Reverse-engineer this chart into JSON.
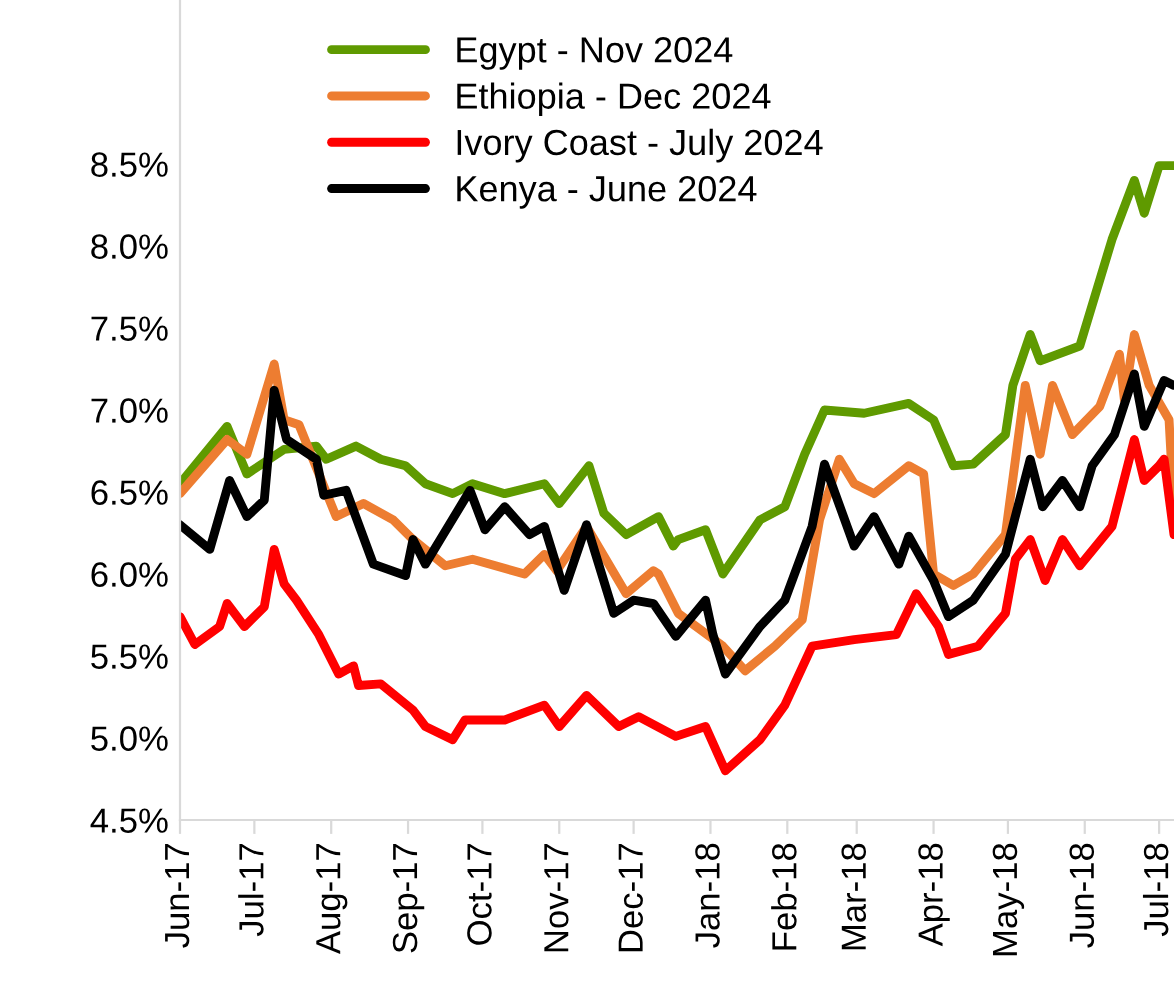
{
  "chart_data": {
    "type": "line",
    "legend": "top",
    "grid": false,
    "line_style": "solid",
    "marker": "none",
    "xlim": [
      "2017-06-01",
      "2018-07-07"
    ],
    "xticks": [
      {
        "value": "2017-06-01",
        "label": "Jun-17"
      },
      {
        "value": "2017-07-01",
        "label": "Jul-17"
      },
      {
        "value": "2017-08-01",
        "label": "Aug-17"
      },
      {
        "value": "2017-09-01",
        "label": "Sep-17"
      },
      {
        "value": "2017-10-01",
        "label": "Oct-17"
      },
      {
        "value": "2017-11-01",
        "label": "Nov-17"
      },
      {
        "value": "2017-12-01",
        "label": "Dec-17"
      },
      {
        "value": "2018-01-01",
        "label": "Jan-18"
      },
      {
        "value": "2018-02-01",
        "label": "Feb-18"
      },
      {
        "value": "2018-03-01",
        "label": "Mar-18"
      },
      {
        "value": "2018-04-01",
        "label": "Apr-18"
      },
      {
        "value": "2018-05-01",
        "label": "May-18"
      },
      {
        "value": "2018-06-01",
        "label": "Jun-18"
      },
      {
        "value": "2018-07-01",
        "label": "Jul-18"
      }
    ],
    "ylim": [
      4.5,
      9.5
    ],
    "yticks": [
      {
        "value": 4.5,
        "label": "4.5%"
      },
      {
        "value": 5.0,
        "label": "5.0%"
      },
      {
        "value": 5.5,
        "label": "5.5%"
      },
      {
        "value": 6.0,
        "label": "6.0%"
      },
      {
        "value": 6.5,
        "label": "6.5%"
      },
      {
        "value": 7.0,
        "label": "7.0%"
      },
      {
        "value": 7.5,
        "label": "7.5%"
      },
      {
        "value": 8.0,
        "label": "8.0%"
      },
      {
        "value": 8.5,
        "label": "8.5%"
      }
    ],
    "series": [
      {
        "name": "Egypt - Nov 2024",
        "color": "#5f9a00",
        "x": [
          "2017-06-01",
          "2017-06-20",
          "2017-06-28",
          "2017-07-13",
          "2017-07-26",
          "2017-07-30",
          "2017-08-11",
          "2017-08-21",
          "2017-08-31",
          "2017-09-08",
          "2017-09-19",
          "2017-09-27",
          "2017-10-10",
          "2017-10-26",
          "2017-11-01",
          "2017-11-13",
          "2017-11-19",
          "2017-11-28",
          "2017-12-11",
          "2017-12-17",
          "2017-12-19",
          "2017-12-30",
          "2018-01-06",
          "2018-01-21",
          "2018-01-31",
          "2018-02-08",
          "2018-02-16",
          "2018-03-04",
          "2018-03-22",
          "2018-04-01",
          "2018-04-09",
          "2018-04-17",
          "2018-04-30",
          "2018-05-03",
          "2018-05-10",
          "2018-05-14",
          "2018-05-30",
          "2018-06-12",
          "2018-06-21",
          "2018-06-25",
          "2018-07-01",
          "2018-07-07"
        ],
        "values": [
          6.55,
          6.9,
          6.61,
          6.76,
          6.78,
          6.7,
          6.78,
          6.7,
          6.66,
          6.55,
          6.49,
          6.55,
          6.49,
          6.55,
          6.43,
          6.66,
          6.37,
          6.24,
          6.35,
          6.17,
          6.21,
          6.27,
          6.0,
          6.33,
          6.41,
          6.73,
          7.0,
          6.98,
          7.04,
          6.94,
          6.66,
          6.67,
          6.85,
          7.15,
          7.46,
          7.3,
          7.39,
          8.04,
          8.4,
          8.2,
          8.49,
          8.49
        ]
      },
      {
        "name": "Ethiopia - Dec 2024",
        "color": "#ed7d31",
        "x": [
          "2017-06-01",
          "2017-06-20",
          "2017-06-28",
          "2017-07-09",
          "2017-07-13",
          "2017-07-19",
          "2017-07-27",
          "2017-08-03",
          "2017-08-14",
          "2017-08-26",
          "2017-09-03",
          "2017-09-16",
          "2017-09-27",
          "2017-10-18",
          "2017-10-26",
          "2017-10-31",
          "2017-11-12",
          "2017-11-28",
          "2017-12-09",
          "2017-12-11",
          "2017-12-19",
          "2018-01-06",
          "2018-01-15",
          "2018-01-27",
          "2018-02-07",
          "2018-02-14",
          "2018-02-22",
          "2018-02-28",
          "2018-03-08",
          "2018-03-22",
          "2018-03-28",
          "2018-04-01",
          "2018-04-09",
          "2018-04-17",
          "2018-04-30",
          "2018-05-08",
          "2018-05-14",
          "2018-05-19",
          "2018-05-27",
          "2018-06-07",
          "2018-06-15",
          "2018-06-17",
          "2018-06-21",
          "2018-06-27",
          "2018-07-05",
          "2018-07-07"
        ],
        "values": [
          6.49,
          6.82,
          6.73,
          7.28,
          6.94,
          6.91,
          6.61,
          6.35,
          6.43,
          6.33,
          6.21,
          6.05,
          6.09,
          6.0,
          6.12,
          6.02,
          6.29,
          5.88,
          6.02,
          6.0,
          5.76,
          5.56,
          5.41,
          5.56,
          5.72,
          6.33,
          6.7,
          6.55,
          6.49,
          6.66,
          6.61,
          6.0,
          5.93,
          6.0,
          6.24,
          7.15,
          6.73,
          7.15,
          6.85,
          7.02,
          7.34,
          7.06,
          7.46,
          7.15,
          6.94,
          6.39
        ]
      },
      {
        "name": "Ivory Coast - July 2024",
        "color": "#ff0000",
        "x": [
          "2017-06-01",
          "2017-06-07",
          "2017-06-17",
          "2017-06-20",
          "2017-06-27",
          "2017-07-05",
          "2017-07-09",
          "2017-07-13",
          "2017-07-18",
          "2017-07-27",
          "2017-08-04",
          "2017-08-10",
          "2017-08-12",
          "2017-08-21",
          "2017-09-03",
          "2017-09-08",
          "2017-09-19",
          "2017-09-24",
          "2017-10-10",
          "2017-10-26",
          "2017-11-01",
          "2017-11-12",
          "2017-11-25",
          "2017-12-03",
          "2017-12-18",
          "2017-12-30",
          "2018-01-07",
          "2018-01-21",
          "2018-01-31",
          "2018-02-11",
          "2018-02-28",
          "2018-03-17",
          "2018-03-25",
          "2018-04-03",
          "2018-04-07",
          "2018-04-19",
          "2018-04-30",
          "2018-05-04",
          "2018-05-10",
          "2018-05-16",
          "2018-05-23",
          "2018-05-30",
          "2018-06-12",
          "2018-06-21",
          "2018-06-25",
          "2018-07-01",
          "2018-07-03",
          "2018-07-07"
        ],
        "values": [
          5.74,
          5.57,
          5.68,
          5.82,
          5.68,
          5.8,
          6.15,
          5.94,
          5.84,
          5.63,
          5.39,
          5.44,
          5.32,
          5.33,
          5.17,
          5.07,
          4.99,
          5.11,
          5.11,
          5.2,
          5.07,
          5.26,
          5.07,
          5.13,
          5.01,
          5.07,
          4.8,
          4.99,
          5.2,
          5.56,
          5.6,
          5.63,
          5.88,
          5.68,
          5.51,
          5.56,
          5.76,
          6.09,
          6.21,
          5.96,
          6.21,
          6.05,
          6.29,
          6.82,
          6.57,
          6.66,
          6.7,
          6.24
        ]
      },
      {
        "name": "Kenya - June 2024",
        "color": "#000000",
        "x": [
          "2017-06-01",
          "2017-06-13",
          "2017-06-21",
          "2017-06-28",
          "2017-07-05",
          "2017-07-09",
          "2017-07-14",
          "2017-07-26",
          "2017-07-29",
          "2017-08-07",
          "2017-08-18",
          "2017-08-31",
          "2017-09-03",
          "2017-09-08",
          "2017-09-14",
          "2017-09-26",
          "2017-10-02",
          "2017-10-10",
          "2017-10-20",
          "2017-10-26",
          "2017-11-03",
          "2017-11-12",
          "2017-11-23",
          "2017-12-01",
          "2017-12-09",
          "2017-12-18",
          "2017-12-30",
          "2018-01-02",
          "2018-01-07",
          "2018-01-21",
          "2018-01-31",
          "2018-02-11",
          "2018-02-16",
          "2018-02-28",
          "2018-03-08",
          "2018-03-18",
          "2018-03-22",
          "2018-04-01",
          "2018-04-07",
          "2018-04-17",
          "2018-04-30",
          "2018-05-10",
          "2018-05-15",
          "2018-05-23",
          "2018-05-30",
          "2018-06-04",
          "2018-06-13",
          "2018-06-21",
          "2018-06-25",
          "2018-07-03",
          "2018-07-07"
        ],
        "values": [
          6.3,
          6.15,
          6.57,
          6.35,
          6.45,
          7.12,
          6.82,
          6.7,
          6.48,
          6.51,
          6.06,
          5.99,
          6.21,
          6.06,
          6.21,
          6.51,
          6.27,
          6.41,
          6.24,
          6.29,
          5.9,
          6.3,
          5.76,
          5.84,
          5.82,
          5.62,
          5.84,
          5.63,
          5.39,
          5.68,
          5.84,
          6.29,
          6.67,
          6.17,
          6.35,
          6.06,
          6.23,
          5.96,
          5.74,
          5.84,
          6.12,
          6.7,
          6.41,
          6.57,
          6.41,
          6.66,
          6.85,
          7.22,
          6.9,
          7.18,
          7.15
        ]
      }
    ]
  }
}
